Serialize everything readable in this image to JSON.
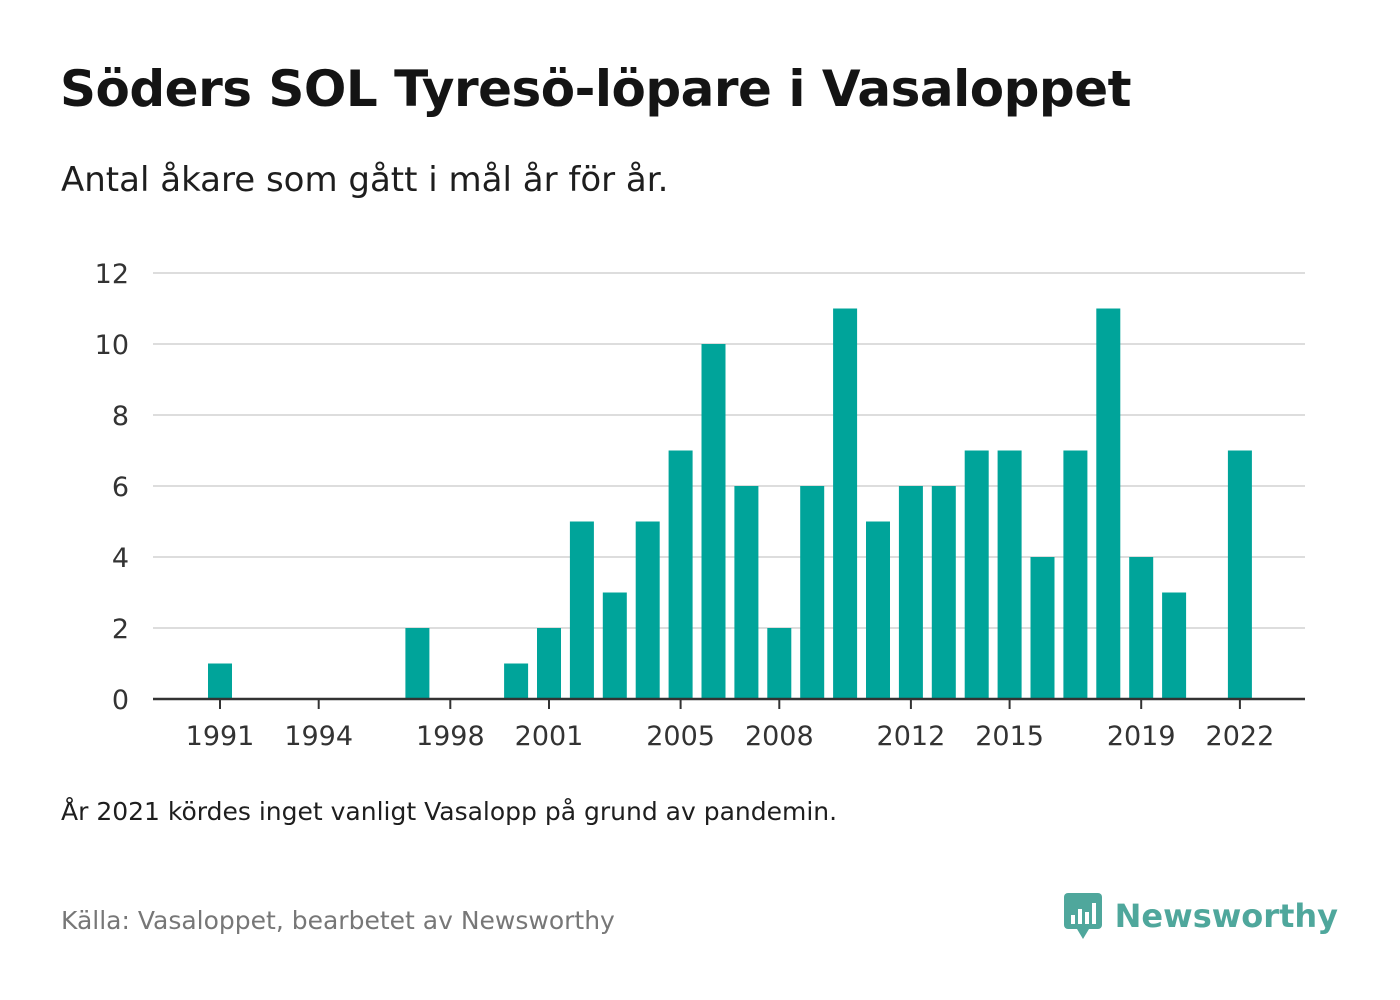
{
  "title": "Söders SOL Tyresö-löpare i Vasaloppet",
  "subtitle": "Antal åkare som gått i mål år för år.",
  "note": "År 2021 kördes inget vanligt Vasalopp på grund av pandemin.",
  "source": "Källa: Vasaloppet, bearbetet av Newsworthy",
  "brand": {
    "name": "Newsworthy",
    "icon": "newsworthy-logo-icon"
  },
  "colors": {
    "bar": "#00a49a",
    "grid": "#dddddd",
    "axis": "#333333",
    "brand": "#4fa79c"
  },
  "chart_data": {
    "type": "bar",
    "x": [
      1991,
      1992,
      1993,
      1994,
      1995,
      1996,
      1997,
      1998,
      1999,
      2000,
      2001,
      2002,
      2003,
      2004,
      2005,
      2006,
      2007,
      2008,
      2009,
      2010,
      2011,
      2012,
      2013,
      2014,
      2015,
      2016,
      2017,
      2018,
      2019,
      2020,
      2021,
      2022
    ],
    "values": [
      1,
      0,
      0,
      0,
      0,
      0,
      2,
      0,
      0,
      1,
      2,
      5,
      3,
      5,
      7,
      10,
      6,
      2,
      6,
      11,
      5,
      6,
      6,
      7,
      7,
      4,
      7,
      11,
      4,
      3,
      0,
      7
    ],
    "xticks": [
      "1991",
      "1994",
      "1998",
      "2001",
      "2005",
      "2008",
      "2012",
      "2015",
      "2019",
      "2022"
    ],
    "yticks": [
      "0",
      "2",
      "4",
      "6",
      "8",
      "10",
      "12"
    ],
    "ylim": [
      0,
      12
    ],
    "grid": true,
    "legend": "none"
  }
}
